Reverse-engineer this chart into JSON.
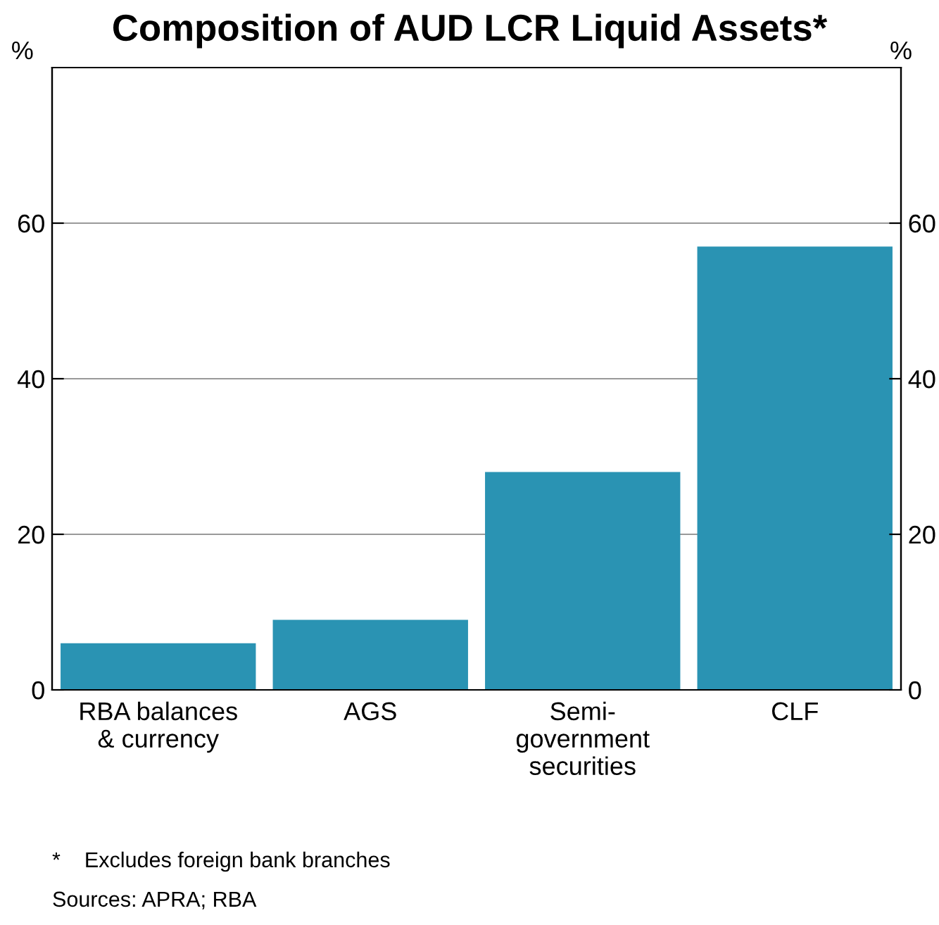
{
  "chart_data": {
    "type": "bar",
    "title": "Composition of AUD LCR Liquid Assets*",
    "ylabel": "%",
    "y2label": "%",
    "categories": [
      "RBA balances\n& currency",
      "AGS",
      "Semi-\ngovernment\nsecurities",
      "CLF"
    ],
    "values": [
      6,
      9,
      28,
      57
    ],
    "color": "#2a93b3",
    "ylim": [
      0,
      80
    ],
    "yticks": [
      0,
      20,
      40,
      60
    ],
    "y2lim": [
      0,
      80
    ],
    "y2ticks": [
      0,
      20,
      40,
      60
    ],
    "grid": "y",
    "annotations": [
      "*    Excludes foreign bank branches",
      "Sources: APRA; RBA"
    ]
  }
}
